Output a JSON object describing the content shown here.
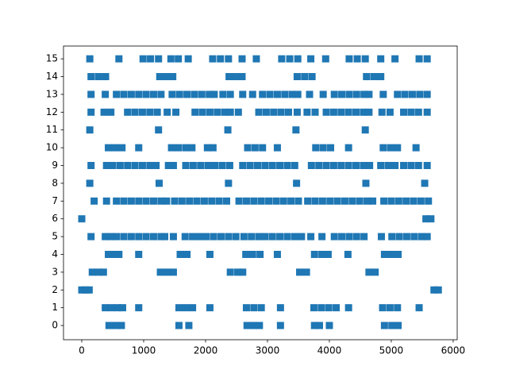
{
  "chart_data": {
    "type": "scatter",
    "color": "#1f77b4",
    "marker": "square",
    "xlim": [
      -295,
      6065
    ],
    "ylim": [
      -0.8,
      15.72
    ],
    "xticks": [
      0,
      1000,
      2000,
      3000,
      4000,
      5000,
      6000
    ],
    "yticks": [
      0,
      1,
      2,
      3,
      4,
      5,
      6,
      7,
      8,
      9,
      10,
      11,
      12,
      13,
      14,
      15
    ],
    "x": [
      130,
      600,
      990,
      1110,
      1240,
      1440,
      1560,
      1720,
      2115,
      2240,
      2370,
      2590,
      2820,
      3230,
      3360,
      3490,
      3700,
      3940,
      4320,
      4450,
      4580,
      4830,
      5060,
      5450,
      5580,
      150,
      270,
      385,
      1260,
      1370,
      1470,
      2380,
      2490,
      2590,
      3480,
      3600,
      3720,
      4600,
      4720,
      4830,
      150,
      380,
      560,
      680,
      800,
      920,
      1040,
      1160,
      1280,
      1460,
      1580,
      1700,
      1820,
      1940,
      2060,
      2140,
      2280,
      2400,
      2600,
      2760,
      2920,
      3040,
      3160,
      3280,
      3400,
      3490,
      3680,
      3900,
      4080,
      4200,
      4320,
      4440,
      4560,
      4640,
      4870,
      5100,
      5220,
      5340,
      5460,
      5580,
      150,
      360,
      470,
      740,
      860,
      980,
      1100,
      1220,
      1380,
      1520,
      1830,
      1950,
      2070,
      2190,
      2310,
      2400,
      2530,
      2860,
      2980,
      3100,
      3220,
      3340,
      3480,
      3640,
      3770,
      3950,
      4070,
      4190,
      4310,
      4430,
      4550,
      4640,
      4850,
      4980,
      5200,
      5320,
      5440,
      5580,
      130,
      1240,
      2360,
      3460,
      4580,
      430,
      540,
      650,
      920,
      1450,
      1560,
      1680,
      1780,
      2030,
      2120,
      2680,
      2800,
      2920,
      3160,
      3780,
      3900,
      4020,
      4310,
      4870,
      4990,
      5100,
      5400,
      150,
      400,
      500,
      620,
      740,
      860,
      980,
      1100,
      1200,
      1400,
      1480,
      1680,
      1800,
      1920,
      2040,
      2150,
      2270,
      2390,
      2600,
      2720,
      2840,
      2960,
      3080,
      3200,
      3320,
      3440,
      3710,
      3830,
      3950,
      4070,
      4190,
      4310,
      4430,
      4550,
      4650,
      4830,
      4950,
      5060,
      5200,
      5320,
      5440,
      5580,
      130,
      1250,
      2370,
      3470,
      4590,
      5540,
      200,
      400,
      560,
      680,
      800,
      920,
      1040,
      1160,
      1280,
      1370,
      1500,
      1620,
      1740,
      1860,
      1980,
      2100,
      2220,
      2340,
      2540,
      2660,
      2780,
      2900,
      3020,
      3140,
      3260,
      3380,
      3500,
      3650,
      3770,
      3890,
      4010,
      4130,
      4250,
      4370,
      4490,
      4610,
      4700,
      4880,
      5000,
      5120,
      5240,
      5360,
      5480,
      5600,
      0,
      5560,
      5640,
      150,
      380,
      470,
      560,
      680,
      800,
      920,
      1040,
      1160,
      1280,
      1340,
      1480,
      1670,
      1790,
      1900,
      2010,
      2130,
      2250,
      2370,
      2490,
      2620,
      2740,
      2860,
      2960,
      3080,
      3200,
      3320,
      3440,
      3550,
      3700,
      3880,
      4080,
      4200,
      4320,
      4440,
      4560,
      4840,
      5010,
      5130,
      5250,
      5370,
      5490,
      5580,
      430,
      520,
      600,
      920,
      1590,
      1700,
      2070,
      2650,
      2760,
      2880,
      3160,
      3760,
      3880,
      3980,
      4300,
      4890,
      5000,
      5110,
      170,
      270,
      350,
      1270,
      1380,
      1480,
      2400,
      2520,
      2600,
      3520,
      3630,
      4640,
      4740,
      0,
      60,
      120,
      5690,
      5760,
      380,
      480,
      580,
      660,
      920,
      1570,
      1680,
      1790,
      2070,
      2660,
      2780,
      2900,
      3210,
      3750,
      3870,
      3990,
      4110,
      4310,
      4860,
      4980,
      5100,
      5450,
      440,
      550,
      640,
      1570,
      1730,
      2670,
      2770,
      2870,
      3210,
      3760,
      3840,
      4000,
      4890,
      5010,
      5110
    ],
    "values": [
      15,
      15,
      15,
      15,
      15,
      15,
      15,
      15,
      15,
      15,
      15,
      15,
      15,
      15,
      15,
      15,
      15,
      15,
      15,
      15,
      15,
      15,
      15,
      15,
      15,
      14,
      14,
      14,
      14,
      14,
      14,
      14,
      14,
      14,
      14,
      14,
      14,
      14,
      14,
      14,
      13,
      13,
      13,
      13,
      13,
      13,
      13,
      13,
      13,
      13,
      13,
      13,
      13,
      13,
      13,
      13,
      13,
      13,
      13,
      13,
      13,
      13,
      13,
      13,
      13,
      13,
      13,
      13,
      13,
      13,
      13,
      13,
      13,
      13,
      13,
      13,
      13,
      13,
      13,
      13,
      12,
      12,
      12,
      12,
      12,
      12,
      12,
      12,
      12,
      12,
      12,
      12,
      12,
      12,
      12,
      12,
      12,
      12,
      12,
      12,
      12,
      12,
      12,
      12,
      12,
      12,
      12,
      12,
      12,
      12,
      12,
      12,
      12,
      12,
      12,
      12,
      12,
      12,
      11,
      11,
      11,
      11,
      11,
      10,
      10,
      10,
      10,
      10,
      10,
      10,
      10,
      10,
      10,
      10,
      10,
      10,
      10,
      10,
      10,
      10,
      10,
      10,
      10,
      10,
      10,
      9,
      9,
      9,
      9,
      9,
      9,
      9,
      9,
      9,
      9,
      9,
      9,
      9,
      9,
      9,
      9,
      9,
      9,
      9,
      9,
      9,
      9,
      9,
      9,
      9,
      9,
      9,
      9,
      9,
      9,
      9,
      9,
      9,
      9,
      9,
      9,
      9,
      9,
      9,
      9,
      9,
      9,
      8,
      8,
      8,
      8,
      8,
      8,
      7,
      7,
      7,
      7,
      7,
      7,
      7,
      7,
      7,
      7,
      7,
      7,
      7,
      7,
      7,
      7,
      7,
      7,
      7,
      7,
      7,
      7,
      7,
      7,
      7,
      7,
      7,
      7,
      7,
      7,
      7,
      7,
      7,
      7,
      7,
      7,
      7,
      7,
      7,
      7,
      7,
      7,
      7,
      7,
      6,
      6,
      6,
      5,
      5,
      5,
      5,
      5,
      5,
      5,
      5,
      5,
      5,
      5,
      5,
      5,
      5,
      5,
      5,
      5,
      5,
      5,
      5,
      5,
      5,
      5,
      5,
      5,
      5,
      5,
      5,
      5,
      5,
      5,
      5,
      5,
      5,
      5,
      5,
      5,
      5,
      5,
      5,
      5,
      5,
      5,
      4,
      4,
      4,
      4,
      4,
      4,
      4,
      4,
      4,
      4,
      4,
      4,
      4,
      4,
      4,
      4,
      4,
      4,
      3,
      3,
      3,
      3,
      3,
      3,
      3,
      3,
      3,
      3,
      3,
      3,
      3,
      2,
      2,
      2,
      2,
      2,
      1,
      1,
      1,
      1,
      1,
      1,
      1,
      1,
      1,
      1,
      1,
      1,
      1,
      1,
      1,
      1,
      1,
      1,
      1,
      1,
      1,
      1,
      0,
      0,
      0,
      0,
      0,
      0,
      0,
      0,
      0,
      0,
      0,
      0,
      0,
      0,
      0
    ]
  }
}
